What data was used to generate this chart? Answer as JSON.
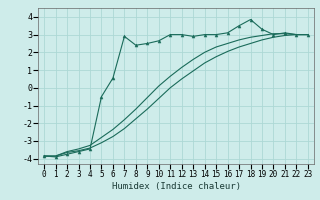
{
  "title": "",
  "xlabel": "Humidex (Indice chaleur)",
  "xlim": [
    -0.5,
    23.5
  ],
  "ylim": [
    -4.3,
    4.5
  ],
  "background_color": "#ceecea",
  "grid_color": "#add8d5",
  "line_color": "#1a6b5a",
  "xticks": [
    0,
    1,
    2,
    3,
    4,
    5,
    6,
    7,
    8,
    9,
    10,
    11,
    12,
    13,
    14,
    15,
    16,
    17,
    18,
    19,
    20,
    21,
    22,
    23
  ],
  "yticks": [
    -4,
    -3,
    -2,
    -1,
    0,
    1,
    2,
    3,
    4
  ],
  "zigzag_x": [
    0,
    1,
    2,
    3,
    4,
    5,
    6,
    7,
    8,
    9,
    10,
    11,
    12,
    13,
    14,
    15,
    16,
    17,
    18,
    19,
    20,
    21,
    22,
    23
  ],
  "zigzag_y": [
    -3.85,
    -3.9,
    -3.75,
    -3.6,
    -3.45,
    -0.5,
    0.55,
    2.9,
    2.4,
    2.5,
    2.65,
    3.0,
    3.0,
    2.9,
    3.0,
    3.0,
    3.1,
    3.5,
    3.85,
    3.3,
    3.0,
    3.1,
    3.0,
    3.0
  ],
  "line1_x": [
    0,
    1,
    2,
    3,
    4,
    5,
    6,
    7,
    8,
    9,
    10,
    11,
    12,
    13,
    14,
    15,
    16,
    17,
    18,
    19,
    20,
    21,
    22,
    23
  ],
  "line1_y": [
    -3.85,
    -3.85,
    -3.65,
    -3.55,
    -3.4,
    -3.1,
    -2.75,
    -2.3,
    -1.75,
    -1.2,
    -0.6,
    0.0,
    0.5,
    0.95,
    1.4,
    1.75,
    2.05,
    2.3,
    2.5,
    2.7,
    2.85,
    2.95,
    3.0,
    3.0
  ],
  "line2_x": [
    0,
    1,
    2,
    3,
    4,
    5,
    6,
    7,
    8,
    9,
    10,
    11,
    12,
    13,
    14,
    15,
    16,
    17,
    18,
    19,
    20,
    21,
    22,
    23
  ],
  "line2_y": [
    -3.85,
    -3.85,
    -3.6,
    -3.45,
    -3.25,
    -2.8,
    -2.35,
    -1.8,
    -1.2,
    -0.55,
    0.1,
    0.65,
    1.15,
    1.6,
    2.0,
    2.3,
    2.5,
    2.7,
    2.85,
    2.95,
    3.05,
    3.05,
    3.0,
    3.0
  ],
  "xlabel_fontsize": 6.5,
  "tick_fontsize": 5.5,
  "ytick_fontsize": 6.0
}
